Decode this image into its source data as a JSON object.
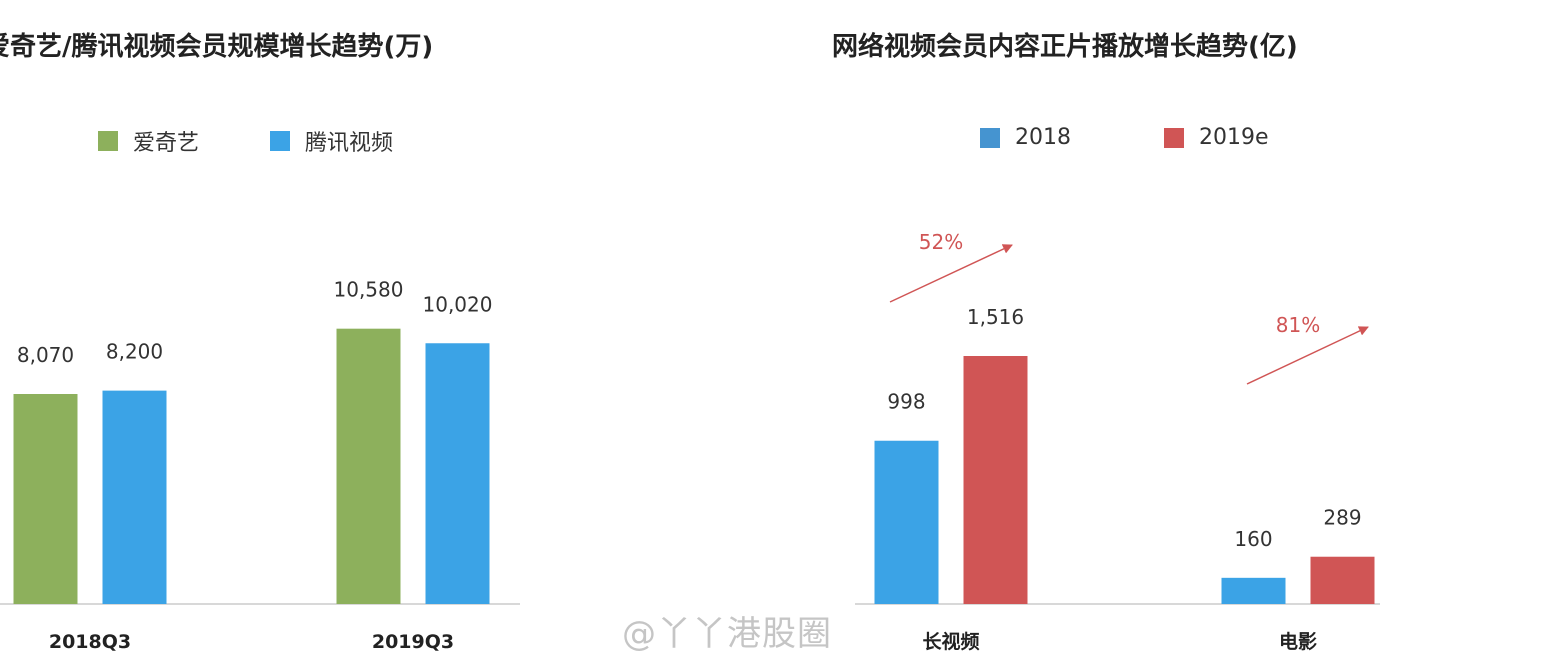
{
  "chart_data": [
    {
      "type": "bar",
      "title": "爱奇艺/腾讯视频会员规模增长趋势(万)",
      "categories": [
        "2018Q3",
        "2019Q3"
      ],
      "series": [
        {
          "name": "爱奇艺",
          "values": [
            8070,
            10580
          ],
          "value_labels": [
            "8,070",
            "10,580"
          ],
          "color": "#8db05c"
        },
        {
          "name": "腾讯视频",
          "values": [
            8200,
            10020
          ],
          "value_labels": [
            "8,200",
            "10,020"
          ],
          "color": "#3ba3e6"
        }
      ],
      "legend": "top",
      "grid": false
    },
    {
      "type": "bar",
      "title": "网络视频会员内容正片播放增长趋势(亿)",
      "categories": [
        "长视频",
        "电影"
      ],
      "series": [
        {
          "name": "2018",
          "values": [
            998,
            160
          ],
          "value_labels": [
            "998",
            "160"
          ],
          "color": "#3ba3e6"
        },
        {
          "name": "2019e",
          "values": [
            1516,
            289
          ],
          "value_labels": [
            "1,516",
            "289"
          ],
          "color": "#d05555"
        }
      ],
      "annotations": [
        "52%",
        "81%"
      ],
      "legend": "top",
      "grid": false
    }
  ],
  "watermark": "@丫丫港股圈",
  "colors": {
    "axis": "#cccccc",
    "arrow": "#d05555",
    "legend_2018": "#4594d0"
  }
}
